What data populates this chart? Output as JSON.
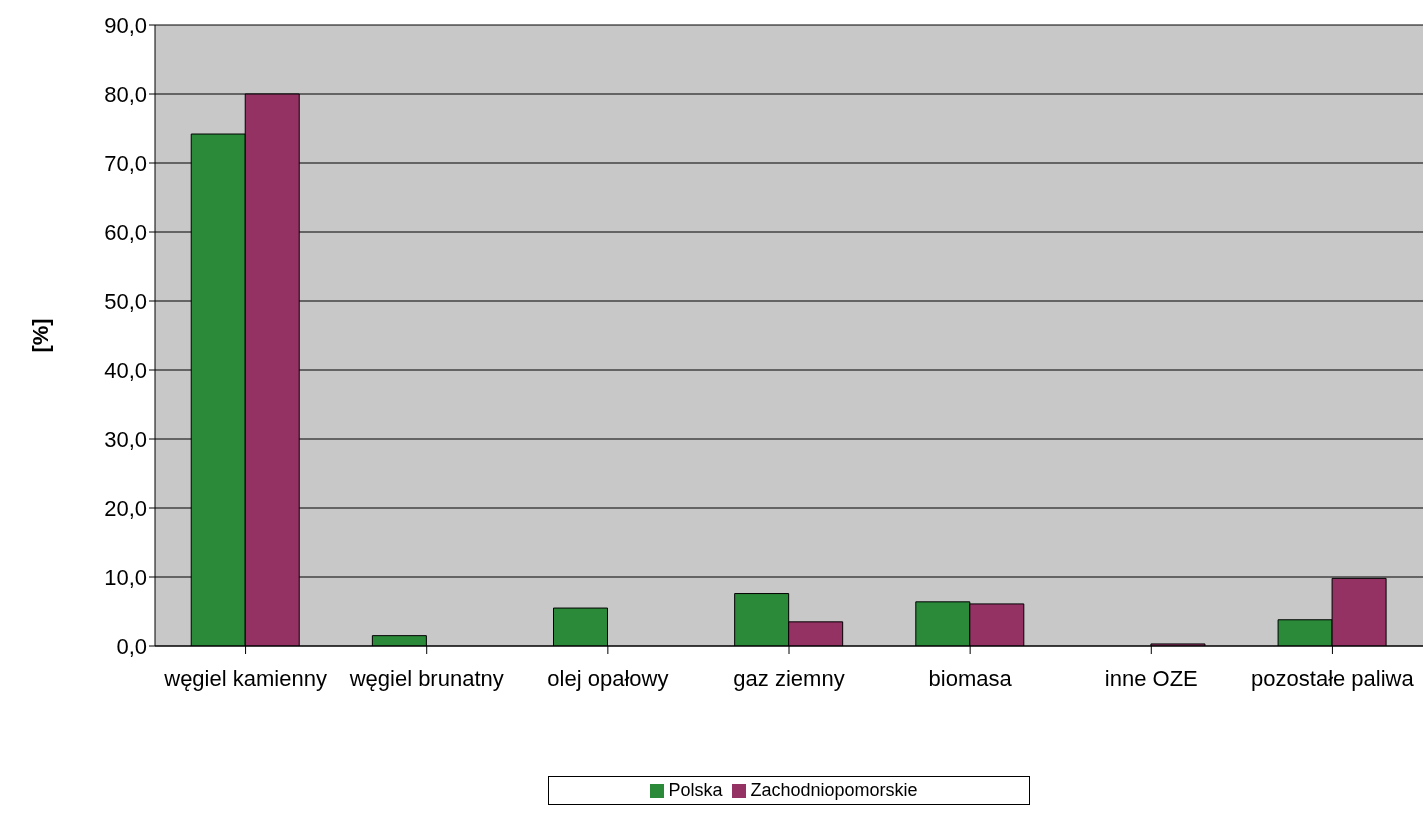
{
  "chart_data": {
    "type": "bar",
    "ylabel": "[%]",
    "categories": [
      "węgiel kamienny",
      "węgiel brunatny",
      "olej opałowy",
      "gaz ziemny",
      "biomasa",
      "inne OZE",
      "pozostałe paliwa"
    ],
    "series": [
      {
        "name": "Polska",
        "color": "#2a8a3a",
        "values": [
          74.2,
          1.5,
          5.5,
          7.6,
          6.4,
          0,
          3.8
        ]
      },
      {
        "name": "Zachodniopomorskie",
        "color": "#953264",
        "values": [
          80.0,
          0,
          0,
          3.5,
          6.1,
          0.3,
          9.8
        ]
      }
    ],
    "ylim": [
      0,
      90
    ],
    "yticks": [
      {
        "value": 0,
        "label": "0,0"
      },
      {
        "value": 10,
        "label": "10,0"
      },
      {
        "value": 20,
        "label": "20,0"
      },
      {
        "value": 30,
        "label": "30,0"
      },
      {
        "value": 40,
        "label": "40,0"
      },
      {
        "value": 50,
        "label": "50,0"
      },
      {
        "value": 60,
        "label": "60,0"
      },
      {
        "value": 70,
        "label": "70,0"
      },
      {
        "value": 80,
        "label": "80,0"
      },
      {
        "value": 90,
        "label": "90,0"
      }
    ],
    "grid": "y",
    "legend": "bottom"
  }
}
